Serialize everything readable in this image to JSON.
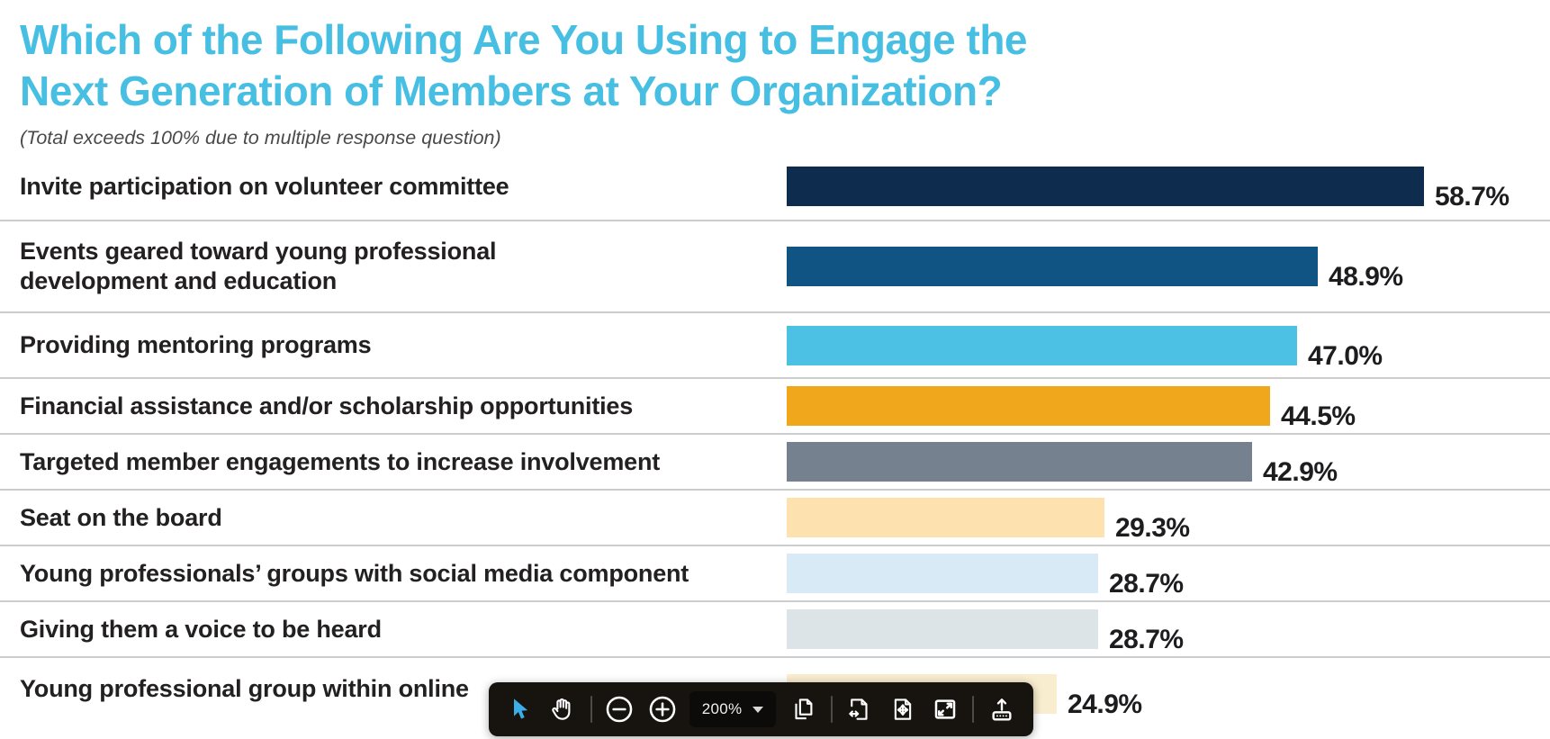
{
  "accent_color": "#47BFE3",
  "header": {
    "title_line1": "Which of the Following Are You Using to Engage the",
    "title_line2": "Next Generation of Members at Your Organization?",
    "subtitle": "(Total exceeds 100% due to multiple response question)"
  },
  "chart_data": {
    "type": "bar",
    "orientation": "horizontal",
    "title": "Which of the Following Are You Using to Engage the Next Generation of Members at Your Organization?",
    "note": "(Total exceeds 100% due to multiple response question)",
    "unit": "%",
    "xlim": [
      0,
      60
    ],
    "grid": false,
    "legend": false,
    "categories": [
      "Invite participation on volunteer committee",
      "Events geared toward young professional development and education",
      "Providing mentoring programs",
      "Financial assistance and/or scholarship opportunities",
      "Targeted member engagements to increase involvement",
      "Seat on the board",
      "Young professionals’ groups with social media component",
      "Giving them a voice to be heard",
      "Young professional group within online"
    ],
    "values": [
      58.7,
      48.9,
      47.0,
      44.5,
      42.9,
      29.3,
      28.7,
      28.7,
      24.9
    ],
    "value_labels": [
      "58.7%",
      "48.9%",
      "47.0%",
      "44.5%",
      "42.9%",
      "29.3%",
      "28.7%",
      "28.7%",
      "24.9%"
    ],
    "bar_colors": [
      "#0E2C4E",
      "#0F5483",
      "#4CC1E4",
      "#F0A71C",
      "#75818E",
      "#FDE2B0",
      "#D8EAF6",
      "#DDE4E8",
      "#F9EDCF"
    ]
  },
  "toolbar": {
    "zoom_level": "200%",
    "tools": [
      "select-cursor",
      "pan-hand",
      "zoom-out",
      "zoom-in",
      "zoom-level-select",
      "copy-page",
      "fit-width",
      "fit-page",
      "fullscreen",
      "upload"
    ],
    "cursor_active_color": "#3BAEE8",
    "background": "#17140F"
  }
}
